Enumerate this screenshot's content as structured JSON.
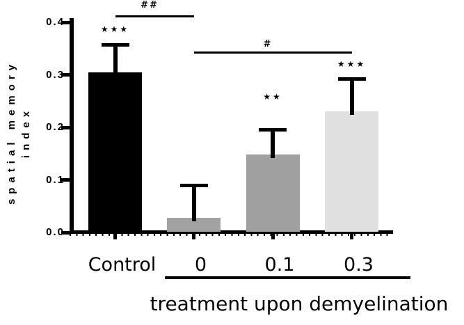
{
  "figure": {
    "background": "#ffffff",
    "axis_color": "#000000"
  },
  "chart_data": {
    "type": "bar",
    "title": "",
    "ylabel_line1": "spatial memory",
    "ylabel_line2": "index",
    "xlabel": "treatment upon demyelination",
    "ylim": [
      0.0,
      0.4
    ],
    "yticks": [
      0.0,
      0.1,
      0.2,
      0.3,
      0.4
    ],
    "ytick_labels": [
      "0.0",
      "0.1",
      "0.2",
      "0.3",
      "0.4"
    ],
    "grid": false,
    "legend": null,
    "categories": [
      "Control",
      "0",
      "0.1",
      "0.3"
    ],
    "bars": [
      {
        "label": "Control",
        "value": 0.305,
        "error": 0.052,
        "color": "#000000",
        "significance": "***",
        "sig_gap": 13
      },
      {
        "label": "0",
        "value": 0.028,
        "error": 0.062,
        "color": "#a2a2a2",
        "significance": "",
        "sig_gap": 0
      },
      {
        "label": "0.1",
        "value": 0.148,
        "error": 0.048,
        "color": "#a0a0a0",
        "significance": "**",
        "sig_gap": 38
      },
      {
        "label": "0.3",
        "value": 0.23,
        "error": 0.062,
        "color": "#e0e0e0",
        "significance": "***",
        "sig_gap": 12
      }
    ],
    "error_bar_style": "upper-only-cap",
    "brackets": [
      {
        "label": "##",
        "from_bar": 0,
        "to_bar": 1,
        "line_y": 22,
        "label_y": 1
      },
      {
        "label": "#",
        "from_bar": 1,
        "to_bar": 3,
        "line_y": 74,
        "label_y": 57
      }
    ],
    "group_underline_bars": [
      1,
      3
    ],
    "group_label": "treatment upon demyelination"
  }
}
